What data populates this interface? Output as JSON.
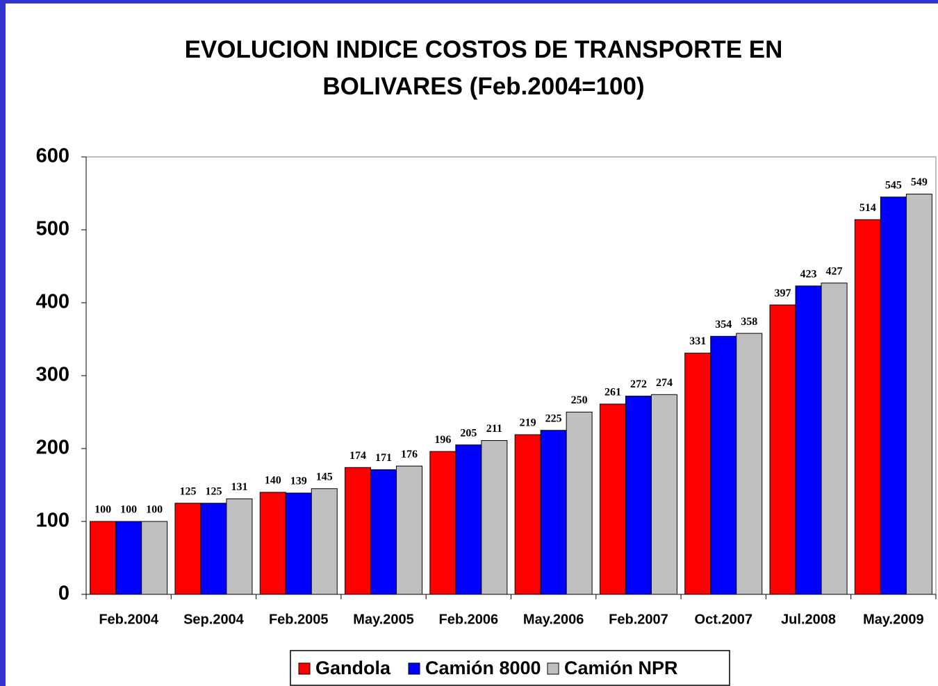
{
  "chart_data": {
    "type": "bar",
    "title": "EVOLUCION INDICE COSTOS DE TRANSPORTE EN BOLIVARES (Feb.2004=100)",
    "categories": [
      "Feb.2004",
      "Sep.2004",
      "Feb.2005",
      "May.2005",
      "Feb.2006",
      "May.2006",
      "Feb.2007",
      "Oct.2007",
      "Jul.2008",
      "May.2009"
    ],
    "series": [
      {
        "name": "Gandola",
        "color": "#ff0000",
        "values": [
          100,
          125,
          140,
          174,
          196,
          219,
          261,
          331,
          397,
          514
        ]
      },
      {
        "name": "Camión 8000",
        "color": "#0000ff",
        "values": [
          100,
          125,
          139,
          171,
          205,
          225,
          272,
          354,
          423,
          545
        ]
      },
      {
        "name": "Camión NPR",
        "color": "#c0c0c0",
        "values": [
          100,
          131,
          145,
          176,
          211,
          250,
          274,
          358,
          427,
          549
        ]
      }
    ],
    "ylim": [
      0,
      600
    ],
    "yticks": [
      0,
      100,
      200,
      300,
      400,
      500,
      600
    ],
    "grid": false,
    "legend": "bottom"
  }
}
